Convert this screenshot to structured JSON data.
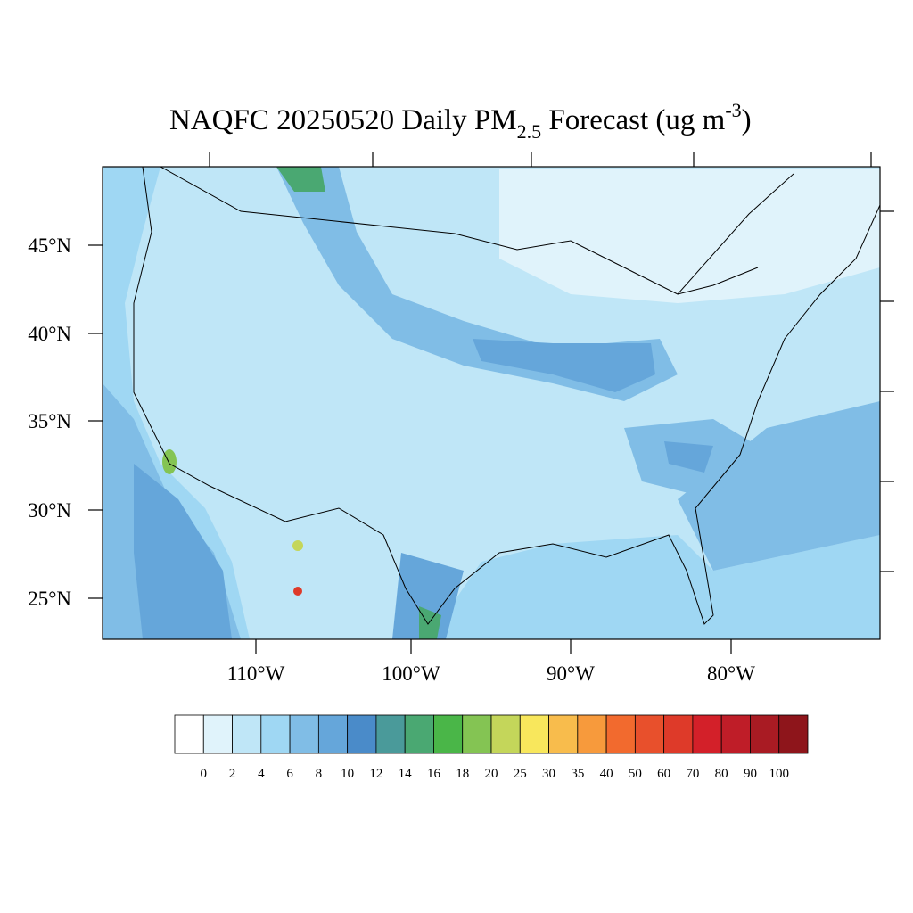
{
  "title": {
    "main": "NAQFC 20250520 Daily PM",
    "subscript": "2.5",
    "rest": " Forecast (ug m",
    "superscript": "-3",
    "close": ")"
  },
  "lat_labels": [
    "45°N",
    "40°N",
    "35°N",
    "30°N",
    "25°N"
  ],
  "lon_labels": [
    "110°W",
    "100°W",
    "90°W",
    "80°W"
  ],
  "colorbar": {
    "levels": [
      0,
      2,
      4,
      6,
      8,
      10,
      12,
      14,
      16,
      18,
      20,
      25,
      30,
      35,
      40,
      50,
      60,
      70,
      80,
      90,
      100
    ],
    "colors": [
      "#ffffff",
      "#e0f3fb",
      "#bfe6f7",
      "#9fd7f3",
      "#80bde6",
      "#65a6da",
      "#4a8bc9",
      "#4a9a9a",
      "#4aa872",
      "#4ab648",
      "#84c453",
      "#c4d65a",
      "#f8e75c",
      "#f8bc4c",
      "#f79a3c",
      "#f26a2e",
      "#e8502c",
      "#de3a29",
      "#d32029",
      "#bf1d28",
      "#a91b23",
      "#8e151b"
    ]
  }
}
